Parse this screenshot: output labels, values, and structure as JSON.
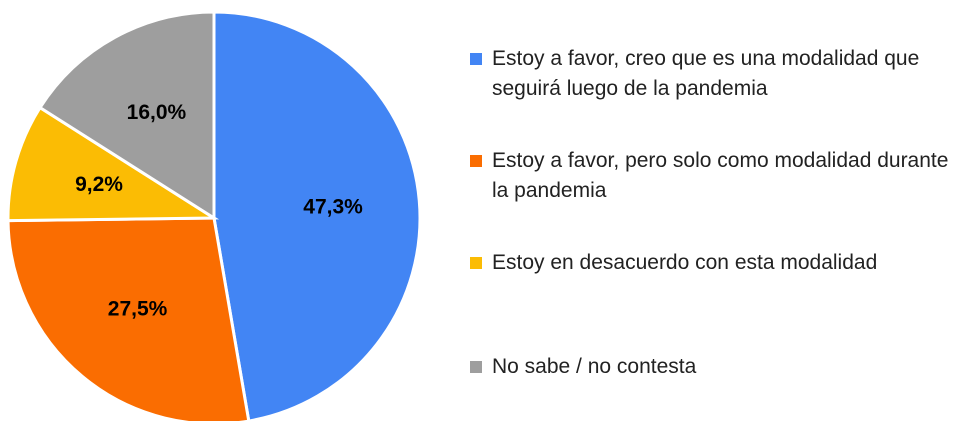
{
  "chart_data": {
    "type": "pie",
    "categories": [
      "Estoy a favor, creo que es una modalidad que seguirá luego de la pandemia",
      "Estoy a favor, pero solo como modalidad durante la pandemia",
      "Estoy en desacuerdo con esta modalidad",
      "No sabe / no contesta"
    ],
    "values": [
      47.3,
      27.5,
      9.2,
      16.0
    ],
    "value_labels": [
      "47,3%",
      "27,5%",
      "9,2%",
      "16,0%"
    ],
    "colors": [
      "#4285f4",
      "#fa6d01",
      "#fbbc04",
      "#9e9e9e"
    ],
    "legend": "right"
  }
}
